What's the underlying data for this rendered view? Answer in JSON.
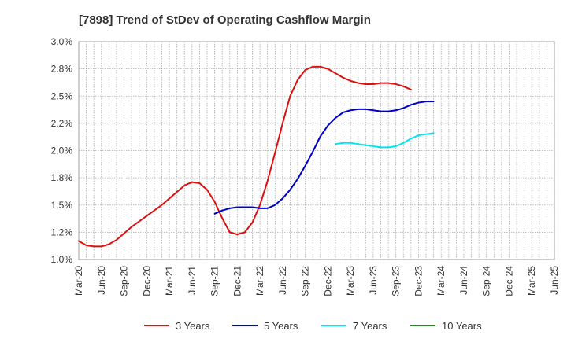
{
  "chart_data": {
    "type": "line",
    "title": "[7898]  Trend of StDev of Operating Cashflow Margin",
    "xlabel": "",
    "ylabel": "",
    "ylim": [
      1.0,
      3.0
    ],
    "y_ticks": [
      1.0,
      1.25,
      1.5,
      1.75,
      2.0,
      2.25,
      2.5,
      2.75,
      3.0
    ],
    "y_tick_labels": [
      "1.0%",
      "1.2%",
      "1.5%",
      "1.8%",
      "2.0%",
      "2.2%",
      "2.5%",
      "2.8%",
      "3.0%"
    ],
    "x_tick_labels": [
      "Mar-20",
      "Jun-20",
      "Sep-20",
      "Dec-20",
      "Mar-21",
      "Jun-21",
      "Sep-21",
      "Dec-21",
      "Mar-22",
      "Jun-22",
      "Sep-22",
      "Dec-22",
      "Mar-23",
      "Jun-23",
      "Sep-23",
      "Dec-23",
      "Mar-24",
      "Jun-24",
      "Sep-24",
      "Dec-24",
      "Mar-25",
      "Jun-25"
    ],
    "grid": true,
    "legend_position": "bottom",
    "series": [
      {
        "name": "3 Years",
        "color": "#dd1111",
        "points": [
          [
            0,
            1.17
          ],
          [
            1,
            1.13
          ],
          [
            2,
            1.12
          ],
          [
            3,
            1.12
          ],
          [
            4,
            1.14
          ],
          [
            5,
            1.18
          ],
          [
            6,
            1.24
          ],
          [
            7,
            1.3
          ],
          [
            8,
            1.35
          ],
          [
            9,
            1.4
          ],
          [
            10,
            1.45
          ],
          [
            11,
            1.5
          ],
          [
            12,
            1.56
          ],
          [
            13,
            1.62
          ],
          [
            14,
            1.68
          ],
          [
            15,
            1.71
          ],
          [
            16,
            1.7
          ],
          [
            17,
            1.64
          ],
          [
            18,
            1.53
          ],
          [
            19,
            1.38
          ],
          [
            20,
            1.25
          ],
          [
            21,
            1.23
          ],
          [
            22,
            1.25
          ],
          [
            23,
            1.34
          ],
          [
            24,
            1.5
          ],
          [
            25,
            1.72
          ],
          [
            26,
            1.98
          ],
          [
            27,
            2.25
          ],
          [
            28,
            2.5
          ],
          [
            29,
            2.65
          ],
          [
            30,
            2.74
          ],
          [
            31,
            2.77
          ],
          [
            32,
            2.77
          ],
          [
            33,
            2.75
          ],
          [
            34,
            2.71
          ],
          [
            35,
            2.67
          ],
          [
            36,
            2.64
          ],
          [
            37,
            2.62
          ],
          [
            38,
            2.61
          ],
          [
            39,
            2.61
          ],
          [
            40,
            2.62
          ],
          [
            41,
            2.62
          ],
          [
            42,
            2.61
          ],
          [
            43,
            2.59
          ],
          [
            44,
            2.56
          ]
        ]
      },
      {
        "name": "5 Years",
        "color": "#0000cc",
        "points": [
          [
            18,
            1.42
          ],
          [
            19,
            1.45
          ],
          [
            20,
            1.47
          ],
          [
            21,
            1.48
          ],
          [
            22,
            1.48
          ],
          [
            23,
            1.48
          ],
          [
            24,
            1.47
          ],
          [
            25,
            1.47
          ],
          [
            26,
            1.5
          ],
          [
            27,
            1.56
          ],
          [
            28,
            1.64
          ],
          [
            29,
            1.74
          ],
          [
            30,
            1.86
          ],
          [
            31,
            1.99
          ],
          [
            32,
            2.13
          ],
          [
            33,
            2.23
          ],
          [
            34,
            2.3
          ],
          [
            35,
            2.35
          ],
          [
            36,
            2.37
          ],
          [
            37,
            2.38
          ],
          [
            38,
            2.38
          ],
          [
            39,
            2.37
          ],
          [
            40,
            2.36
          ],
          [
            41,
            2.36
          ],
          [
            42,
            2.37
          ],
          [
            43,
            2.39
          ],
          [
            44,
            2.42
          ],
          [
            45,
            2.44
          ],
          [
            46,
            2.45
          ],
          [
            47,
            2.45
          ]
        ]
      },
      {
        "name": "7 Years",
        "color": "#00e5ee",
        "points": [
          [
            34,
            2.06
          ],
          [
            35,
            2.07
          ],
          [
            36,
            2.07
          ],
          [
            37,
            2.06
          ],
          [
            38,
            2.05
          ],
          [
            39,
            2.04
          ],
          [
            40,
            2.03
          ],
          [
            41,
            2.03
          ],
          [
            42,
            2.04
          ],
          [
            43,
            2.07
          ],
          [
            44,
            2.11
          ],
          [
            45,
            2.14
          ],
          [
            46,
            2.15
          ],
          [
            47,
            2.16
          ]
        ]
      },
      {
        "name": "10 Years",
        "color": "#228b22",
        "points": []
      }
    ]
  }
}
